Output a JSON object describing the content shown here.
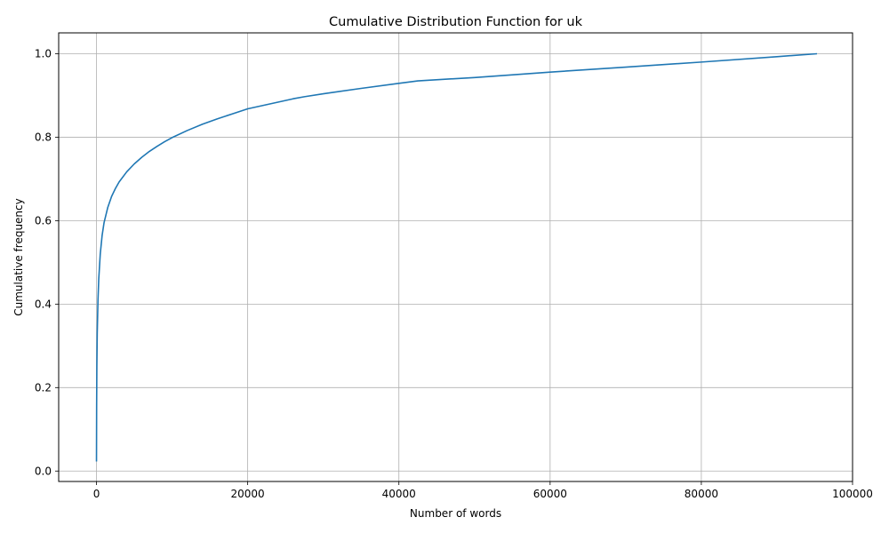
{
  "chart_data": {
    "type": "line",
    "title": "Cumulative Distribution Function for uk",
    "xlabel": "Number of words",
    "ylabel": "Cumulative frequency",
    "xlim": [
      -5000,
      100000
    ],
    "ylim": [
      -0.025,
      1.05
    ],
    "xticks": [
      0,
      20000,
      40000,
      60000,
      80000,
      100000
    ],
    "xtick_labels": [
      "0",
      "20000",
      "40000",
      "60000",
      "80000",
      "100000"
    ],
    "yticks": [
      0.0,
      0.2,
      0.4,
      0.6,
      0.8,
      1.0
    ],
    "ytick_labels": [
      "0.0",
      "0.2",
      "0.4",
      "0.6",
      "0.8",
      "1.0"
    ],
    "grid": true,
    "line_color": "#1f77b4",
    "series": [
      {
        "x": [
          1,
          20,
          50,
          100,
          200,
          300,
          500,
          750,
          1000,
          1500,
          2000,
          2500,
          3000,
          4000,
          5000,
          6000,
          7000,
          8000,
          9000,
          10000,
          12000,
          14000,
          16000,
          18000,
          20000,
          22000,
          24000,
          26000,
          27500,
          30000,
          35000,
          40000,
          42500,
          50000,
          60000,
          70000,
          80000,
          90000,
          95300
        ],
        "y": [
          0.023,
          0.15,
          0.25,
          0.33,
          0.41,
          0.46,
          0.52,
          0.565,
          0.595,
          0.632,
          0.658,
          0.677,
          0.693,
          0.717,
          0.736,
          0.752,
          0.766,
          0.778,
          0.789,
          0.799,
          0.816,
          0.831,
          0.844,
          0.856,
          0.868,
          0.876,
          0.884,
          0.892,
          0.897,
          0.904,
          0.917,
          0.929,
          0.935,
          0.943,
          0.956,
          0.968,
          0.98,
          0.993,
          1.0
        ]
      }
    ]
  }
}
